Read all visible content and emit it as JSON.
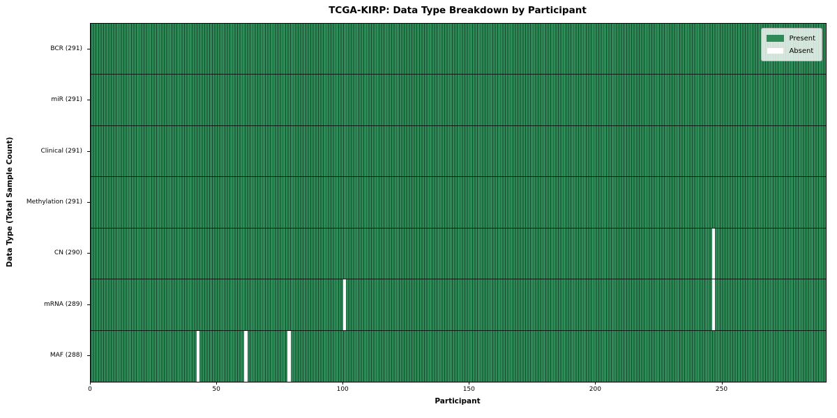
{
  "chart_data": {
    "type": "heatmap",
    "title": "TCGA-KIRP: Data Type Breakdown by Participant",
    "xlabel": "Participant",
    "ylabel": "Data Type (Total Sample Count)",
    "x_ticks": [
      0,
      50,
      100,
      150,
      200,
      250
    ],
    "xlim": [
      0,
      291
    ],
    "n_participants": 291,
    "grid": false,
    "rows": [
      {
        "label": "BCR (291)",
        "name": "BCR",
        "present_count": 291,
        "absent_participants": []
      },
      {
        "label": "miR (291)",
        "name": "miR",
        "present_count": 291,
        "absent_participants": []
      },
      {
        "label": "Clinical (291)",
        "name": "Clinical",
        "present_count": 291,
        "absent_participants": []
      },
      {
        "label": "Methylation (291)",
        "name": "Methylation",
        "present_count": 291,
        "absent_participants": []
      },
      {
        "label": "CN (290)",
        "name": "CN",
        "present_count": 290,
        "absent_participants": [
          246
        ]
      },
      {
        "label": "mRNA (289)",
        "name": "mRNA",
        "present_count": 289,
        "absent_participants": [
          100,
          246
        ]
      },
      {
        "label": "MAF (288)",
        "name": "MAF",
        "present_count": 288,
        "absent_participants": [
          42,
          61,
          78
        ]
      }
    ],
    "legend": {
      "position": "upper right",
      "items": [
        {
          "label": "Present",
          "color": "#2e8b57"
        },
        {
          "label": "Absent",
          "color": "#ffffff"
        }
      ]
    },
    "colors": {
      "present": "#2e8b57",
      "absent": "#ffffff",
      "bar_edge": "#17492e",
      "row_boundary": "#000000",
      "spine": "#000000",
      "background": "#ffffff"
    }
  }
}
